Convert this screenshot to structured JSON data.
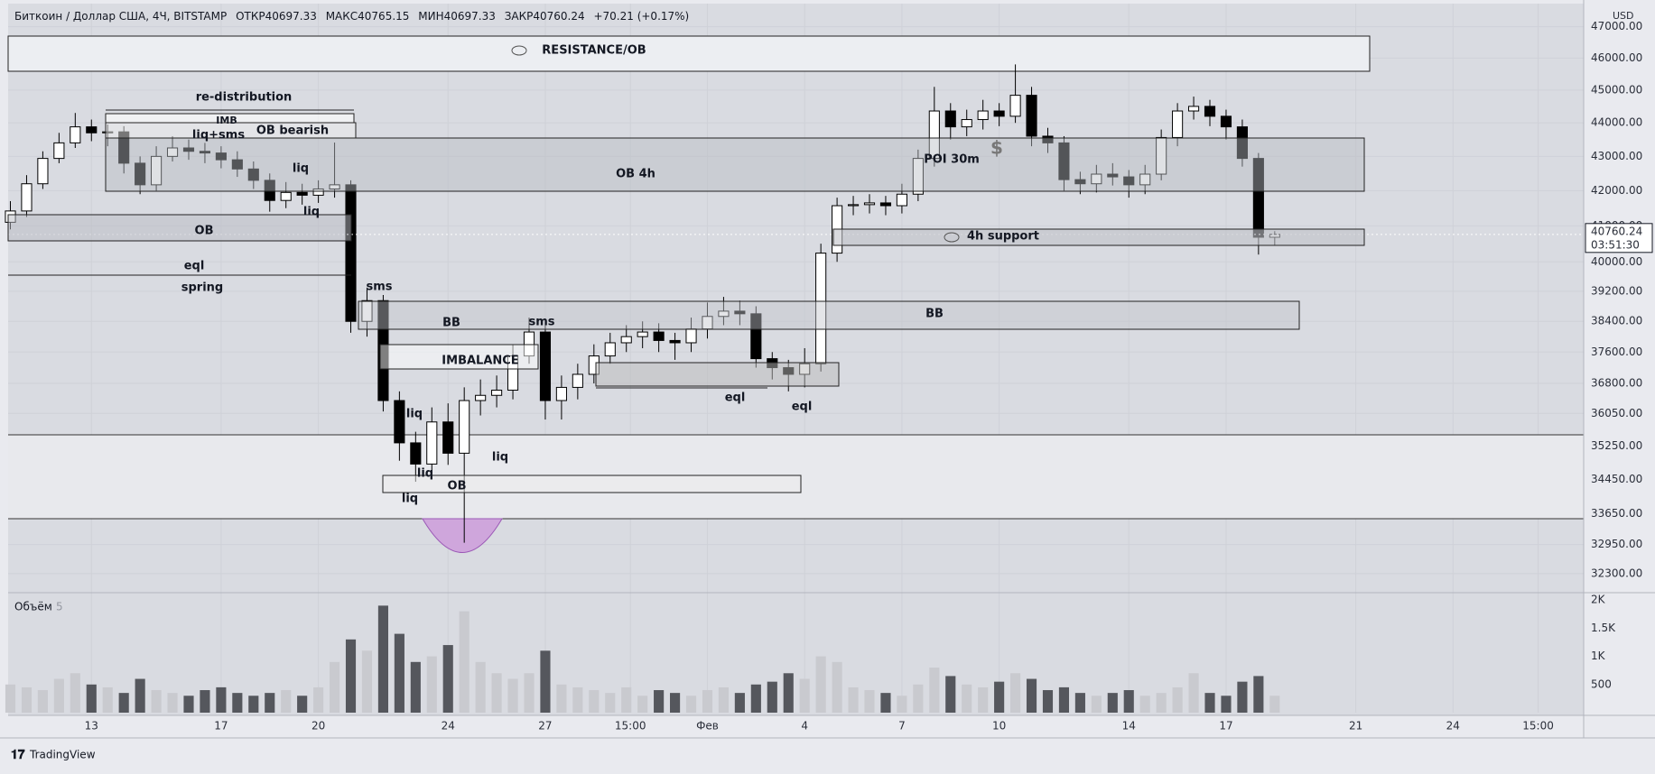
{
  "header": {
    "symbol": "Биткоин / Доллар США, 4Ч, BITSTAMP",
    "open_label": "ОТКР",
    "open": 40697.33,
    "high_label": "МАКС",
    "high": 40765.15,
    "low_label": "МИН",
    "low": 40697.33,
    "close_label": "ЗАКР",
    "close": 40760.24,
    "change": "+70.21 (+0.17%)",
    "currency": "USD",
    "volume_title": "Объём",
    "volume_length": 5,
    "brand": "TradingView"
  },
  "chart_data": {
    "type": "candlestick",
    "log": true,
    "grid": true,
    "x": [
      10.5,
      11,
      11.5,
      12,
      12.5,
      13,
      13.5,
      14,
      14.5,
      15,
      15.5,
      16,
      16.5,
      17,
      17.5,
      18,
      18.5,
      19,
      19.5,
      20,
      20.5,
      21,
      21.5,
      22,
      22.5,
      23,
      23.5,
      24,
      24.5,
      25,
      25.5,
      26,
      26.5,
      27,
      27.5,
      28,
      28.5,
      29,
      29.5,
      30,
      30.5,
      31,
      31.5,
      32,
      32.5,
      33,
      33.5,
      34,
      34.5,
      35,
      35.5,
      36,
      36.5,
      37,
      37.5,
      38,
      38.5,
      39,
      39.5,
      40,
      40.5,
      41,
      41.5,
      42,
      42.5,
      43,
      43.5,
      44,
      44.5,
      45,
      45.5,
      46,
      46.5,
      47,
      47.5,
      48,
      48.5,
      49,
      49.5
    ],
    "open": [
      41100,
      41420,
      42200,
      42940,
      43400,
      43880,
      43700,
      43730,
      42800,
      42170,
      43000,
      43250,
      43150,
      43100,
      42900,
      42630,
      42300,
      41720,
      41950,
      41870,
      42050,
      42170,
      38400,
      38950,
      36370,
      35330,
      34820,
      35840,
      35080,
      36370,
      36500,
      36630,
      37500,
      38120,
      36370,
      36700,
      37030,
      37500,
      37840,
      38000,
      38120,
      37900,
      37840,
      38200,
      38530,
      38670,
      38600,
      37430,
      37200,
      37030,
      37300,
      40240,
      41570,
      41600,
      41650,
      41570,
      41900,
      42940,
      44360,
      43880,
      44100,
      44360,
      44200,
      44840,
      43600,
      43400,
      42320,
      42200,
      42480,
      42400,
      42170,
      42480,
      43560,
      44360,
      44500,
      44200,
      43880,
      42940,
      40680
    ],
    "high": [
      41700,
      42450,
      43150,
      43700,
      44300,
      44100,
      43950,
      43900,
      43000,
      43300,
      43600,
      43500,
      43400,
      43300,
      43150,
      42850,
      42500,
      42250,
      42200,
      42300,
      43410,
      42300,
      39300,
      39100,
      36600,
      35600,
      36200,
      36300,
      36700,
      36900,
      37000,
      37800,
      38500,
      38300,
      37000,
      37300,
      37800,
      38100,
      38300,
      38400,
      38350,
      38100,
      38500,
      38900,
      39050,
      38950,
      38800,
      37600,
      37400,
      37700,
      40500,
      41800,
      41850,
      41900,
      41850,
      42200,
      43200,
      45100,
      44600,
      44400,
      44700,
      44600,
      45800,
      45100,
      43850,
      43600,
      42550,
      42750,
      42800,
      42600,
      42750,
      43800,
      44600,
      44800,
      44700,
      44400,
      44100,
      43100,
      40850
    ],
    "low": [
      40900,
      41250,
      42050,
      42800,
      43250,
      43450,
      43300,
      42500,
      41900,
      42000,
      42850,
      42900,
      42800,
      42650,
      42400,
      42050,
      41400,
      41500,
      41600,
      41650,
      41800,
      38100,
      38000,
      36100,
      34900,
      34400,
      34600,
      34800,
      32990,
      36000,
      36200,
      36400,
      37300,
      35900,
      35900,
      36400,
      36800,
      37300,
      37600,
      37700,
      37600,
      37400,
      37600,
      37950,
      38300,
      38300,
      37200,
      36900,
      36600,
      36700,
      37100,
      40000,
      41300,
      41350,
      41300,
      41350,
      41700,
      42700,
      43500,
      43600,
      43800,
      43900,
      44000,
      43300,
      43100,
      42000,
      41900,
      41950,
      42150,
      41800,
      41900,
      42300,
      43300,
      44100,
      43900,
      43500,
      42700,
      40200,
      40450
    ],
    "close": [
      41420,
      42200,
      42940,
      43400,
      43880,
      43700,
      43730,
      42800,
      42170,
      43000,
      43250,
      43150,
      43100,
      42900,
      42630,
      42300,
      41720,
      41950,
      41870,
      42050,
      42170,
      38400,
      38950,
      36370,
      35330,
      34820,
      35840,
      35080,
      36370,
      36500,
      36630,
      37500,
      38120,
      36370,
      36700,
      37030,
      37500,
      37840,
      38000,
      38120,
      37900,
      37840,
      38200,
      38530,
      38670,
      38600,
      37430,
      37200,
      37030,
      37300,
      40240,
      41570,
      41600,
      41650,
      41570,
      41900,
      42940,
      44360,
      43880,
      44100,
      44360,
      44200,
      44840,
      43600,
      43400,
      42320,
      42200,
      42480,
      42400,
      42170,
      42480,
      43560,
      44360,
      44500,
      44200,
      43880,
      42940,
      40680,
      40760
    ],
    "volume": [
      500,
      450,
      400,
      600,
      700,
      500,
      450,
      350,
      600,
      400,
      350,
      300,
      400,
      450,
      350,
      300,
      350,
      400,
      300,
      450,
      900,
      1300,
      1100,
      1900,
      1400,
      900,
      1000,
      1200,
      1800,
      900,
      700,
      600,
      700,
      1100,
      500,
      450,
      400,
      350,
      450,
      300,
      400,
      350,
      300,
      400,
      450,
      350,
      500,
      550,
      700,
      600,
      1000,
      900,
      450,
      400,
      350,
      300,
      500,
      800,
      650,
      500,
      450,
      550,
      700,
      600,
      400,
      450,
      350,
      300,
      350,
      400,
      300,
      350,
      450,
      700,
      350,
      300,
      550,
      650,
      300
    ],
    "up_color": "#ffffff",
    "down_color": "#000000",
    "volume_up_color": "#c9cacf",
    "volume_down_color": "#55575d",
    "xlim": [
      10.43,
      59.03
    ],
    "ylim": [
      31880,
      47750
    ],
    "volume_ylim": [
      0,
      2130
    ],
    "xticks": [
      13,
      17,
      20,
      24,
      27,
      {
        "value": 29.625,
        "label": "15:00"
      },
      {
        "value": 32,
        "label": "Фев"
      },
      {
        "value": 35,
        "label": "4"
      },
      {
        "value": 38,
        "label": "7"
      },
      {
        "value": 41,
        "label": "10"
      },
      {
        "value": 45,
        "label": "14"
      },
      {
        "value": 48,
        "label": "17"
      },
      {
        "value": 52,
        "label": "21"
      },
      {
        "value": 55,
        "label": "24"
      },
      {
        "value": 57.625,
        "label": "15:00"
      }
    ],
    "yticks": [
      {
        "value": 47000,
        "label": "47000.00"
      },
      {
        "value": 46000,
        "label": "46000.00"
      },
      {
        "value": 45000,
        "label": "45000.00"
      },
      {
        "value": 44000,
        "label": "44000.00"
      },
      {
        "value": 43000,
        "label": "43000.00"
      },
      {
        "value": 42000,
        "label": "42000.00"
      },
      {
        "value": 41000,
        "label": "41000.00"
      },
      {
        "value": 40000,
        "label": "40000.00"
      },
      {
        "value": 39200,
        "label": "39200.00"
      },
      {
        "value": 38400,
        "label": "38400.00"
      },
      {
        "value": 37600,
        "label": "37600.00"
      },
      {
        "value": 36800,
        "label": "36800.00"
      },
      {
        "value": 36050,
        "label": "36050.00"
      },
      {
        "value": 35250,
        "label": "35250.00"
      },
      {
        "value": 34450,
        "label": "34450.00"
      },
      {
        "value": 33650,
        "label": "33650.00"
      },
      {
        "value": 32950,
        "label": "32950.00"
      },
      {
        "value": 32300,
        "label": "32300.00"
      }
    ],
    "volume_ticks": [
      {
        "value": 2000,
        "label": "2K"
      },
      {
        "value": 1500,
        "label": "1.5K"
      },
      {
        "value": 1000,
        "label": "1K"
      },
      500
    ],
    "last_price": 40760.24,
    "countdown": "03:51:30",
    "annotations": [
      "RESISTANCE/OB",
      "re-distribution",
      "IMB",
      "liq+sms",
      "OB bearish",
      "OB 4h",
      "OB",
      "eql",
      "spring",
      "sms",
      "BB",
      "sms",
      "BB",
      "IMBALANCE",
      "liq",
      "liq",
      "liq",
      "liq",
      "liq",
      "liq",
      "eql",
      "eql",
      "POI 30m",
      "$",
      "4h support",
      "OB"
    ]
  }
}
